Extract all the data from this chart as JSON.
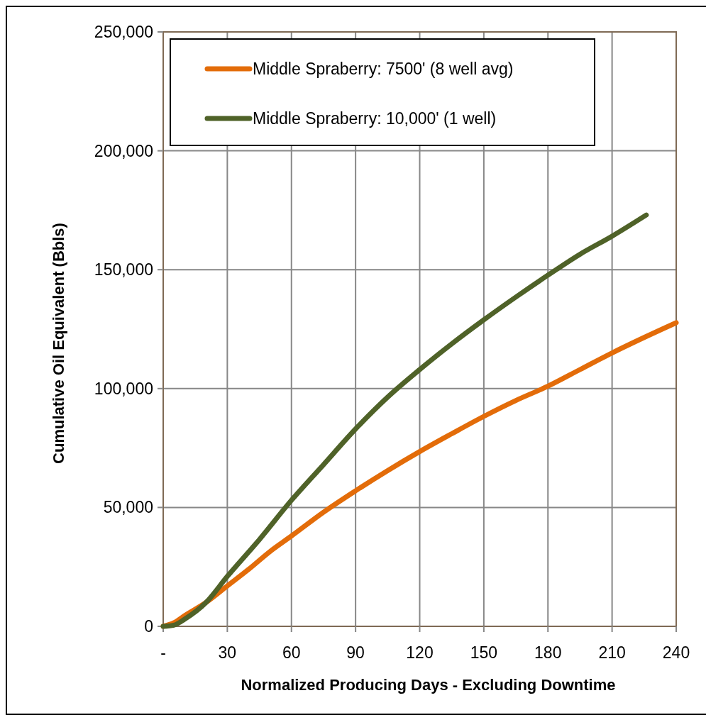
{
  "chart_data": {
    "type": "line",
    "xlabel": "Normalized Producing Days - Excluding Downtime",
    "ylabel": "Cumulative Oil Equivalent (Bbls)",
    "xlim": [
      0,
      240
    ],
    "xticks": [
      {
        "value": 0,
        "label": "-"
      },
      30,
      60,
      90,
      120,
      150,
      180,
      210,
      240
    ],
    "ylim": [
      0,
      250000
    ],
    "yticks": [
      {
        "value": 0,
        "label": "0"
      },
      {
        "value": 50000,
        "label": "50,000"
      },
      {
        "value": 100000,
        "label": "100,000"
      },
      {
        "value": 150000,
        "label": "150,000"
      },
      {
        "value": 200000,
        "label": "200,000"
      },
      {
        "value": 250000,
        "label": "250,000"
      }
    ],
    "grid": true,
    "legend": "top",
    "line_style": "solid",
    "marker": "none",
    "series": [
      {
        "name": "Middle Spraberry: 7500' (8 well avg)",
        "color": "#e36c09",
        "x": [
          0,
          5,
          10,
          20,
          30,
          40,
          50,
          60,
          75,
          90,
          105,
          120,
          135,
          150,
          165,
          180,
          195,
          210,
          225,
          240
        ],
        "values": [
          0,
          1500,
          4500,
          10000,
          17000,
          24000,
          31500,
          38000,
          48000,
          57000,
          65500,
          73500,
          81000,
          88300,
          95000,
          101000,
          108000,
          115000,
          121500,
          127700
        ]
      },
      {
        "name": "Middle Spraberry: 10,000' (1 well)",
        "color": "#4f6228",
        "x": [
          0,
          5,
          10,
          20,
          30,
          45,
          60,
          75,
          90,
          105,
          120,
          135,
          150,
          165,
          180,
          195,
          210,
          226
        ],
        "values": [
          0,
          500,
          3000,
          10000,
          21000,
          36500,
          53000,
          68000,
          83000,
          96400,
          108000,
          118800,
          128900,
          138500,
          147700,
          156500,
          164100,
          173000
        ]
      }
    ]
  }
}
